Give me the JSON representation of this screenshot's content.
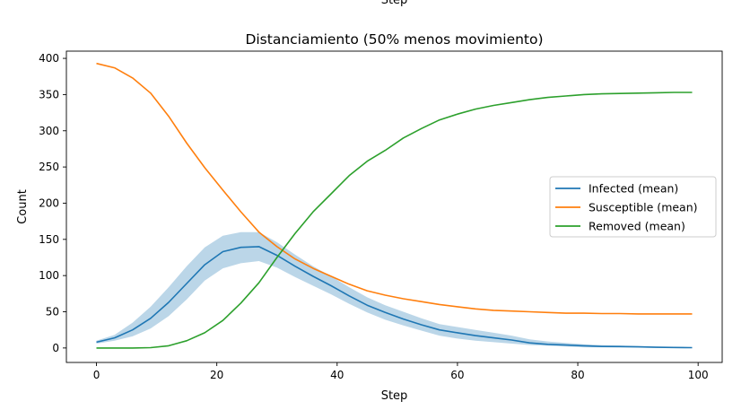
{
  "chart_data": {
    "type": "line",
    "top_clipped_label": "Step",
    "title": "Distanciamiento (50% menos movimiento)",
    "xlabel": "Step",
    "ylabel": "Count",
    "xlim": [
      -5,
      104
    ],
    "ylim": [
      -20,
      410
    ],
    "x_ticks": [
      0,
      20,
      40,
      60,
      80,
      100
    ],
    "y_ticks": [
      0,
      50,
      100,
      150,
      200,
      250,
      300,
      350,
      400
    ],
    "grid": false,
    "legend_position": "center-right",
    "x": [
      0,
      3,
      6,
      9,
      12,
      15,
      18,
      21,
      24,
      27,
      30,
      33,
      36,
      39,
      42,
      45,
      48,
      51,
      54,
      57,
      60,
      63,
      66,
      69,
      72,
      75,
      78,
      81,
      84,
      87,
      90,
      93,
      96,
      99
    ],
    "series": [
      {
        "name": "Infected (mean)",
        "color": "#1f77b4",
        "values": [
          8,
          14,
          25,
          41,
          63,
          89,
          115,
          133,
          139,
          140,
          128,
          113,
          99,
          86,
          72,
          59,
          49,
          40,
          32,
          25,
          21,
          17,
          14,
          11,
          7,
          5,
          4,
          3,
          2,
          2,
          1.5,
          1,
          0.7,
          0.5
        ],
        "band_lower": [
          6,
          10,
          16,
          27,
          44,
          67,
          93,
          110,
          117,
          120,
          111,
          98,
          86,
          74,
          61,
          49,
          39,
          31,
          24,
          17,
          13,
          10,
          8,
          6,
          4,
          3,
          2,
          1,
          1,
          0.5,
          0.5,
          0.3,
          0.2,
          0.1
        ],
        "band_upper": [
          10,
          18,
          35,
          57,
          84,
          113,
          139,
          155,
          160,
          160,
          146,
          129,
          113,
          99,
          84,
          70,
          59,
          50,
          41,
          33,
          29,
          25,
          21,
          17,
          12,
          9,
          7,
          5,
          4,
          3,
          2.5,
          2,
          1.5,
          1
        ]
      },
      {
        "name": "Susceptible (mean)",
        "color": "#ff7f0e",
        "values": [
          393,
          387,
          373,
          352,
          320,
          283,
          249,
          218,
          188,
          160,
          140,
          123,
          110,
          99,
          88,
          79,
          73,
          68,
          64,
          60,
          57,
          54,
          52,
          51,
          50,
          49,
          48,
          48,
          47.5,
          47.5,
          47,
          47,
          47,
          47
        ]
      },
      {
        "name": "Removed (mean)",
        "color": "#2ca02c",
        "values": [
          0,
          0,
          0,
          0.5,
          3,
          10,
          21,
          38,
          62,
          90,
          125,
          158,
          188,
          213,
          238,
          258,
          273,
          290,
          303,
          315,
          323,
          330,
          335,
          339,
          343,
          346,
          348,
          350,
          351,
          351.5,
          352,
          352.5,
          353,
          353
        ]
      }
    ]
  }
}
